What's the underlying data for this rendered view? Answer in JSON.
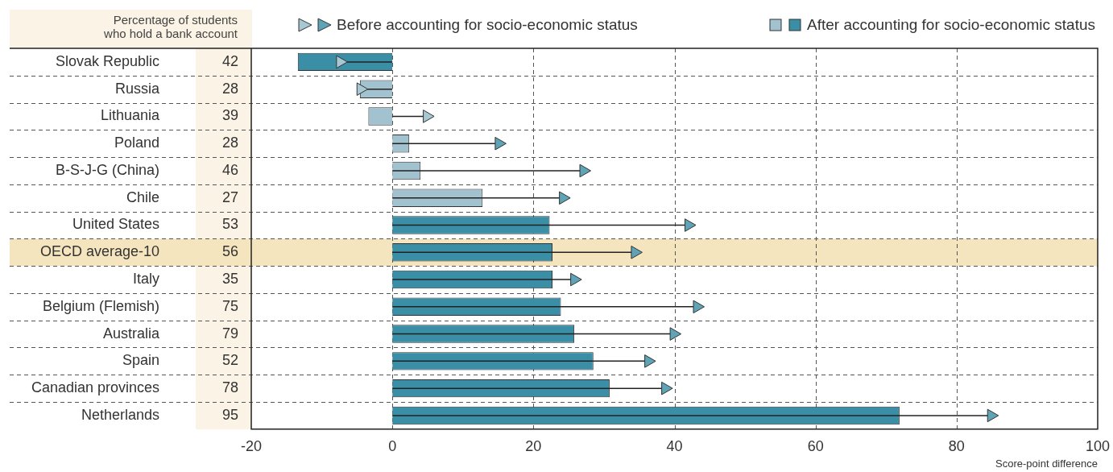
{
  "chart_data": {
    "type": "bar",
    "orientation": "horizontal",
    "xlabel": "Score-point difference",
    "categories": [
      "Slovak Republic",
      "Russia",
      "Lithuania",
      "Poland",
      "B-S-J-G (China)",
      "Chile",
      "United States",
      "OECD average-10",
      "Italy",
      "Belgium (Flemish)",
      "Australia",
      "Spain",
      "Canadian provinces",
      "Netherlands"
    ],
    "series": [
      {
        "name": "Before accounting for socio-economic status",
        "type": "scatter",
        "colors": [
          "#a7c7d3",
          "#a7c7d3",
          "#a7c7d3",
          "#5ea3b6",
          "#5ea3b6",
          "#5ea3b6",
          "#5ea3b6",
          "#5ea3b6",
          "#5ea3b6",
          "#5ea3b6",
          "#5ea3b6",
          "#5ea3b6",
          "#5ea3b6",
          "#5ea3b6"
        ],
        "values": [
          -7.4,
          -4.5,
          4.9,
          15.1,
          27.1,
          24.2,
          42.0,
          34.4,
          25.8,
          43.2,
          39.9,
          36.3,
          38.7,
          84.9
        ]
      },
      {
        "name": "After accounting for socio-economic status",
        "colors": [
          "#3a8fa6",
          "#a3c2cf",
          "#a3c2cf",
          "#a3c2cf",
          "#a3c2cf",
          "#a3c2cf",
          "#3a8fa6",
          "#3a8fa6",
          "#3a8fa6",
          "#3a8fa6",
          "#3a8fa6",
          "#3a8fa6",
          "#3a8fa6",
          "#3a8fa6"
        ],
        "values": [
          -13.4,
          -4.6,
          -3.4,
          2.4,
          4.0,
          12.8,
          22.3,
          22.7,
          22.7,
          23.9,
          25.8,
          28.5,
          30.8,
          71.9
        ]
      }
    ],
    "xlim": [
      -20,
      100
    ],
    "xticks": [
      -20,
      0,
      20,
      40,
      60,
      80,
      100
    ],
    "grid": true,
    "legend": "top right",
    "marker": "triangle",
    "bands": [
      {
        "axis": "y",
        "from": "OECD average-10",
        "to": "OECD average-10",
        "color": "#f5e5bf"
      }
    ],
    "annotations": [
      "Percentage of students who hold a bank account",
      "42",
      "28",
      "39",
      "28",
      "46",
      "27",
      "53",
      "56",
      "35",
      "75",
      "79",
      "52",
      "78",
      "95"
    ]
  }
}
